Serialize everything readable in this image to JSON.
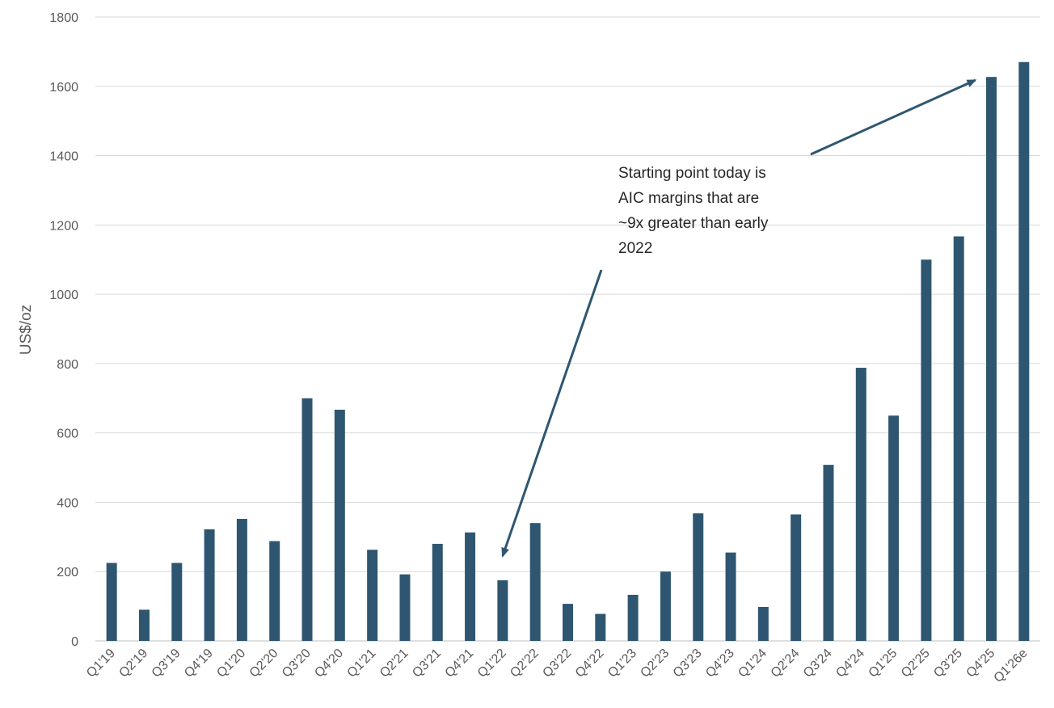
{
  "chart_data": {
    "type": "bar",
    "title": "",
    "xlabel": "",
    "ylabel": "US$/oz",
    "ylim": [
      0,
      1800
    ],
    "yticks": [
      0,
      200,
      400,
      600,
      800,
      1000,
      1200,
      1400,
      1600,
      1800
    ],
    "grid": true,
    "legend": "none",
    "bar_color": "#2f5670",
    "categories": [
      "Q1'19",
      "Q2'19",
      "Q3'19",
      "Q4'19",
      "Q1'20",
      "Q2'20",
      "Q3'20",
      "Q4'20",
      "Q1'21",
      "Q2'21",
      "Q3'21",
      "Q4'21",
      "Q1'22",
      "Q2'22",
      "Q3'22",
      "Q4'22",
      "Q1'23",
      "Q2'23",
      "Q3'23",
      "Q4'23",
      "Q1'24",
      "Q2'24",
      "Q3'24",
      "Q4'24",
      "Q1'25",
      "Q2'25",
      "Q3'25",
      "Q4'25",
      "Q1'26e"
    ],
    "values": [
      225,
      90,
      225,
      322,
      352,
      288,
      700,
      667,
      263,
      192,
      280,
      313,
      175,
      340,
      107,
      78,
      133,
      200,
      368,
      255,
      98,
      365,
      508,
      788,
      650,
      1100,
      1167,
      1627,
      1670
    ],
    "annotations": [
      {
        "text_lines": [
          "Starting point today is",
          "AIC margins that are",
          "~9x greater than early",
          "2022"
        ],
        "arrows_to": [
          "Q1'22",
          "Q4'25"
        ]
      }
    ]
  }
}
